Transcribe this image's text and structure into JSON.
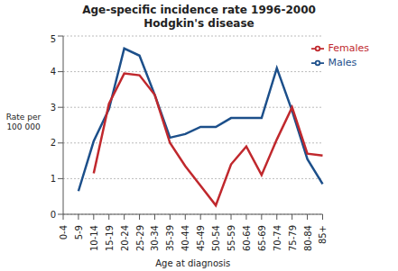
{
  "chart_data": {
    "type": "line",
    "title": "Age-specific incidence rate 1996-2000",
    "subtitle": "Hodgkin's disease",
    "y_label": "Rate per 100 000",
    "x_label": "Age at diagnosis",
    "categories": [
      "0-4",
      "5-9",
      "10-14",
      "15-19",
      "20-24",
      "25-29",
      "30-34",
      "35-39",
      "40-44",
      "45-49",
      "50-54",
      "55-59",
      "60-64",
      "65-69",
      "70-74",
      "75-79",
      "80-84",
      "85+"
    ],
    "series": [
      {
        "name": "Males",
        "color": "#1c4f8a",
        "values": [
          null,
          0.65,
          2.05,
          2.95,
          4.65,
          4.45,
          3.35,
          2.15,
          2.25,
          2.45,
          2.45,
          2.7,
          2.7,
          2.7,
          4.1,
          2.9,
          1.55,
          0.85
        ]
      },
      {
        "name": "Females",
        "color": "#c0282d",
        "values": [
          null,
          null,
          1.15,
          3.1,
          3.95,
          3.9,
          3.35,
          2.0,
          1.35,
          0.8,
          0.25,
          1.4,
          1.9,
          1.1,
          2.1,
          3.0,
          1.7,
          1.65
        ]
      }
    ],
    "ylim": [
      0,
      5
    ],
    "yticks": [
      0,
      1,
      2,
      3,
      4,
      5
    ],
    "grid": true,
    "legend": "upper right"
  }
}
